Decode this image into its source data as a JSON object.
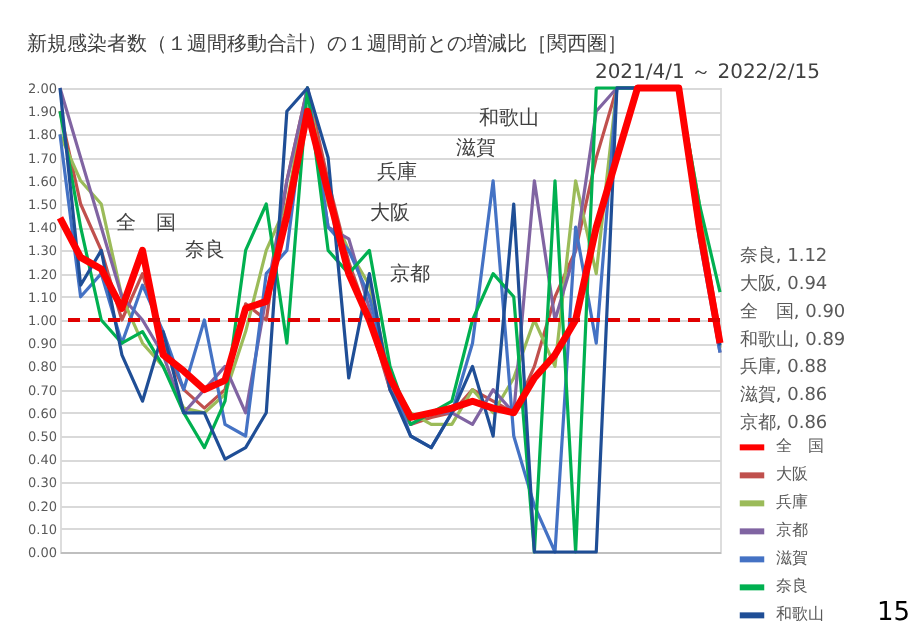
{
  "chart_data": {
    "type": "line",
    "title": "新規感染者数（１週間移動合計）の１週間前との増減比［関西圏］",
    "subtitle": "2021/4/1 ～ 2022/2/15",
    "categories": [
      null,
      null,
      null,
      null,
      null,
      null,
      null,
      null,
      null,
      null,
      null,
      null,
      null,
      null,
      null,
      null,
      null,
      null,
      null,
      null,
      null,
      null,
      null,
      null,
      null,
      null,
      null,
      null,
      null,
      null,
      null,
      null,
      null
    ],
    "ylim": [
      0,
      2
    ],
    "yticks": [
      {
        "value": 0,
        "label": "0.00"
      },
      {
        "value": 0.1,
        "label": "0.10"
      },
      {
        "value": 0.2,
        "label": "0.20"
      },
      {
        "value": 0.3,
        "label": "0.30"
      },
      {
        "value": 0.4,
        "label": "0.40"
      },
      {
        "value": 0.5,
        "label": "0.50"
      },
      {
        "value": 0.6,
        "label": "0.60"
      },
      {
        "value": 0.7,
        "label": "0.70"
      },
      {
        "value": 0.8,
        "label": "0.80"
      },
      {
        "value": 0.9,
        "label": "0.90"
      },
      {
        "value": 1,
        "label": "1.00"
      },
      {
        "value": 1.1,
        "label": "1.10"
      },
      {
        "value": 1.2,
        "label": "1.20"
      },
      {
        "value": 1.3,
        "label": "1.30"
      },
      {
        "value": 1.4,
        "label": "1.40"
      },
      {
        "value": 1.5,
        "label": "1.50"
      },
      {
        "value": 1.6,
        "label": "1.60"
      },
      {
        "value": 1.7,
        "label": "1.70"
      },
      {
        "value": 1.8,
        "label": "1.80"
      },
      {
        "value": 1.9,
        "label": "1.90"
      },
      {
        "value": 2,
        "label": "2.00"
      }
    ],
    "tick_labels": "y",
    "grid": "y",
    "legend": "bottom right",
    "line_style": "solid",
    "series": [
      {
        "name": "全　国",
        "color": "#ff0000",
        "values": [
          1.44,
          1.27,
          1.22,
          1.05,
          1.3,
          0.85,
          0.78,
          0.7,
          0.74,
          1.05,
          1.08,
          1.45,
          1.9,
          1.55,
          1.2,
          1.0,
          0.75,
          0.58,
          0.6,
          0.62,
          0.65,
          0.62,
          0.6,
          0.75,
          0.85,
          1.0,
          1.4,
          1.7,
          2.0,
          2.0,
          2.0,
          1.4,
          0.9
        ]
      },
      {
        "name": "大阪",
        "color": "#c0504d",
        "values": [
          1.9,
          1.5,
          1.3,
          1.0,
          1.2,
          0.9,
          0.7,
          0.62,
          0.7,
          1.07,
          1.0,
          1.6,
          2.0,
          1.6,
          1.25,
          1.0,
          0.7,
          0.55,
          0.58,
          0.6,
          0.7,
          0.65,
          0.6,
          0.8,
          1.1,
          1.3,
          1.7,
          2.0,
          2.0,
          2.0,
          2.0,
          1.45,
          0.94
        ]
      },
      {
        "name": "兵庫",
        "color": "#9bbb59",
        "values": [
          1.8,
          1.6,
          1.5,
          1.1,
          0.9,
          0.8,
          0.62,
          0.6,
          0.68,
          0.95,
          1.3,
          1.5,
          2.0,
          1.5,
          1.3,
          1.15,
          0.75,
          0.6,
          0.55,
          0.55,
          0.7,
          0.6,
          0.75,
          1.0,
          0.8,
          1.6,
          1.2,
          2.0,
          2.0,
          2.0,
          2.0,
          1.5,
          0.88
        ]
      },
      {
        "name": "京都",
        "color": "#8064a2",
        "values": [
          2.0,
          1.7,
          1.4,
          1.1,
          1.0,
          0.85,
          0.6,
          0.7,
          0.8,
          0.6,
          1.1,
          1.6,
          2.0,
          1.4,
          1.35,
          1.05,
          0.7,
          0.55,
          0.6,
          0.6,
          0.55,
          0.7,
          0.6,
          1.6,
          1.0,
          1.3,
          1.9,
          2.0,
          2.0,
          2.0,
          2.0,
          1.4,
          0.86
        ]
      },
      {
        "name": "滋賀",
        "color": "#4472c4",
        "values": [
          1.8,
          1.1,
          1.2,
          0.9,
          1.15,
          0.95,
          0.7,
          1.0,
          0.55,
          0.5,
          1.2,
          1.3,
          2.0,
          1.4,
          1.3,
          1.1,
          0.75,
          0.5,
          0.45,
          0.6,
          0.9,
          1.6,
          0.5,
          0.2,
          0.0,
          1.4,
          0.9,
          2.0,
          2.0,
          2.0,
          2.0,
          1.35,
          0.86
        ]
      },
      {
        "name": "奈良",
        "color": "#00b050",
        "values": [
          1.9,
          1.4,
          1.0,
          0.9,
          0.95,
          0.8,
          0.6,
          0.45,
          0.65,
          1.3,
          1.5,
          0.9,
          2.0,
          1.3,
          1.2,
          1.3,
          0.8,
          0.55,
          0.6,
          0.65,
          1.0,
          1.2,
          1.1,
          0.0,
          1.6,
          0.0,
          2.0,
          2.0,
          2.0,
          2.0,
          2.0,
          1.5,
          1.12
        ]
      },
      {
        "name": "和歌山",
        "color": "#1f4e96",
        "values": [
          2.0,
          1.15,
          1.3,
          0.85,
          0.65,
          0.95,
          0.6,
          0.6,
          0.4,
          0.45,
          0.6,
          1.9,
          2.0,
          1.7,
          0.75,
          1.2,
          0.7,
          0.5,
          0.45,
          0.6,
          0.8,
          0.5,
          1.5,
          0.0,
          0.0,
          0.0,
          0.0,
          2.0,
          2.0,
          2.0,
          2.0,
          1.4,
          0.89
        ]
      }
    ],
    "ref_lines": [
      {
        "axis": "y",
        "value": 1.0,
        "color": "#e00000",
        "line_style": "dashed"
      }
    ],
    "annotations": [
      "全　国",
      "奈良",
      "兵庫",
      "大阪",
      "京都",
      "滋賀",
      "和歌山",
      "奈良, 1.12",
      "大阪, 0.94",
      "全　国, 0.90",
      "和歌山, 0.89",
      "兵庫, 0.88",
      "滋賀, 0.86",
      "京都, 0.86",
      "15"
    ]
  }
}
